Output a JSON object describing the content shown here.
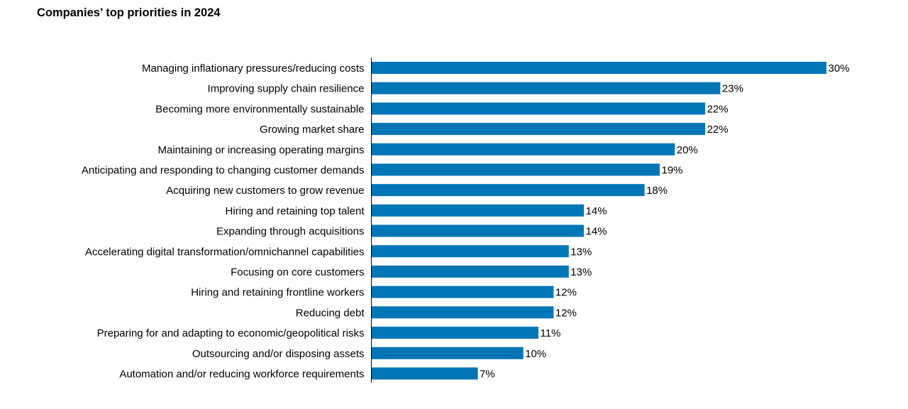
{
  "chart_data": {
    "type": "bar",
    "orientation": "horizontal",
    "title": "Companies’ top priorities in 2024",
    "categories": [
      "Managing inflationary pressures/reducing costs",
      "Improving supply chain resilience",
      "Becoming more environmentally sustainable",
      "Growing market share",
      "Maintaining or increasing operating margins",
      "Anticipating and responding to changing customer demands",
      "Acquiring new customers to grow revenue",
      "Hiring and retaining top talent",
      "Expanding through acquisitions",
      "Accelerating digital transformation/omnichannel capabilities",
      "Focusing on core customers",
      "Hiring and retaining frontline workers",
      "Reducing debt",
      "Preparing for and adapting to economic/geopolitical risks",
      "Outsourcing and/or disposing assets",
      "Automation and/or reducing workforce requirements"
    ],
    "values": [
      30,
      23,
      22,
      22,
      20,
      19,
      18,
      14,
      14,
      13,
      13,
      12,
      12,
      11,
      10,
      7
    ],
    "value_labels": [
      "30%",
      "23%",
      "22%",
      "22%",
      "20%",
      "19%",
      "18%",
      "14%",
      "14%",
      "13%",
      "13%",
      "12%",
      "12%",
      "11%",
      "10%",
      "7%"
    ],
    "unit": "%",
    "bar_color": "#0076B6",
    "axis_color": "#000000",
    "grid": false,
    "legend": "none"
  }
}
